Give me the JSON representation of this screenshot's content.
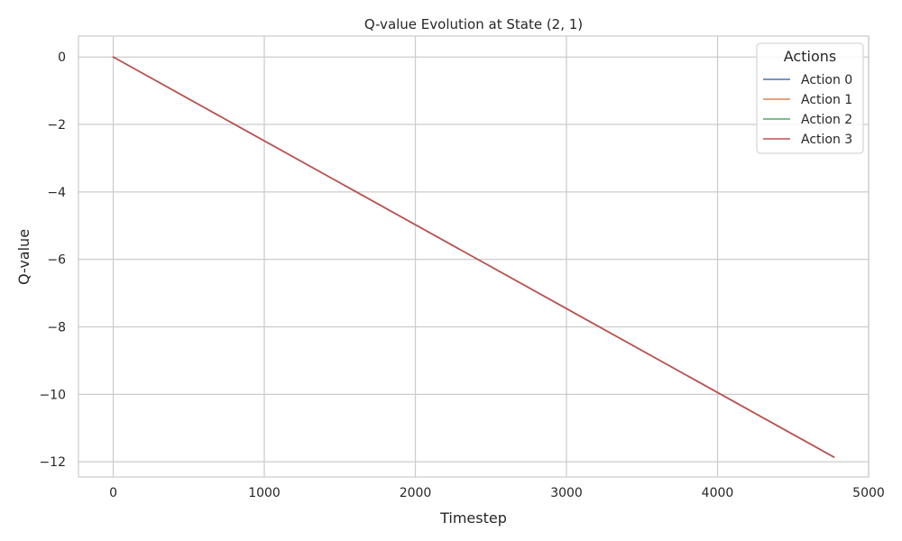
{
  "chart_data": {
    "type": "line",
    "title": "Q-value Evolution at State (2, 1)",
    "xlabel": "Timestep",
    "ylabel": "Q-value",
    "xlim": [
      -230,
      5000
    ],
    "ylim": [
      -12.45,
      0.62
    ],
    "xticks": [
      0,
      1000,
      2000,
      3000,
      4000,
      5000
    ],
    "yticks": [
      0,
      -2,
      -4,
      -6,
      -8,
      -10,
      -12
    ],
    "xtick_labels": [
      "0",
      "1000",
      "2000",
      "3000",
      "4000",
      "5000"
    ],
    "ytick_labels": [
      "0",
      "−2",
      "−4",
      "−6",
      "−8",
      "−10",
      "−12"
    ],
    "grid": true,
    "legend": {
      "title": "Actions",
      "placement": "top-right"
    },
    "series": [
      {
        "name": "Action 0",
        "color": "#4c72b0",
        "x": [
          0,
          4770
        ],
        "y": [
          0,
          -11.86
        ]
      },
      {
        "name": "Action 1",
        "color": "#dd8452",
        "x": [
          0,
          4770
        ],
        "y": [
          0,
          -11.86
        ]
      },
      {
        "name": "Action 2",
        "color": "#55a868",
        "x": [
          0,
          4770
        ],
        "y": [
          0,
          -11.86
        ]
      },
      {
        "name": "Action 3",
        "color": "#c44e52",
        "x": [
          0,
          4770
        ],
        "y": [
          0,
          -11.86
        ]
      }
    ]
  }
}
